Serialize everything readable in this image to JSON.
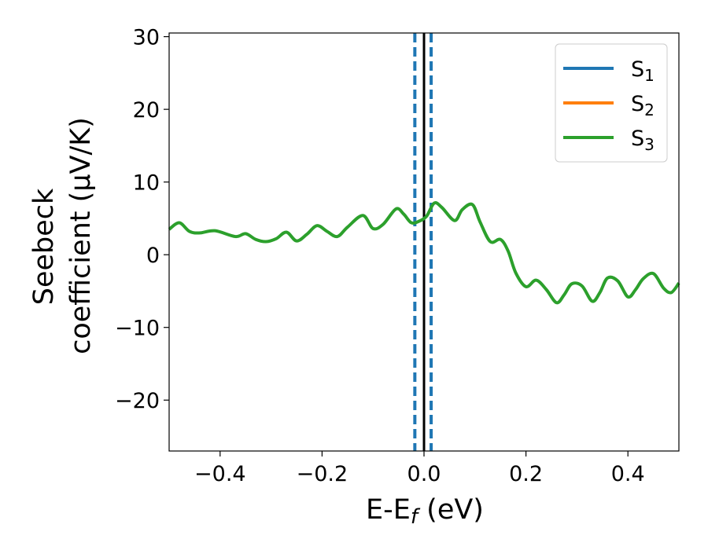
{
  "chart_data": {
    "type": "line",
    "title": "",
    "xlabel": "E-E",
    "xlabel_sub": "f",
    "xlabel_unit": " (eV)",
    "ylabel_line1": "Seebeck",
    "ylabel_line2": "coefficient  (μV/K)",
    "xlim": [
      -0.5,
      0.5
    ],
    "ylim": [
      -27,
      30.5
    ],
    "xticks": [
      -0.4,
      -0.2,
      0.0,
      0.2,
      0.4
    ],
    "xtick_labels": [
      "−0.4",
      "−0.2",
      "0.0",
      "0.2",
      "0.4"
    ],
    "yticks": [
      -20,
      -10,
      0,
      10,
      20,
      30
    ],
    "ytick_labels": [
      "−20",
      "−10",
      "0",
      "10",
      "20",
      "30"
    ],
    "grid": false,
    "legend_position": "top-right",
    "vertical_lines": [
      {
        "x": -0.018,
        "color": "#1f77b4",
        "style": "dashed"
      },
      {
        "x": 0.0,
        "color": "#000000",
        "style": "solid"
      },
      {
        "x": 0.014,
        "color": "#1f77b4",
        "style": "dashed"
      }
    ],
    "series": [
      {
        "name": "S",
        "sub": "1",
        "color": "#1f77b4",
        "x": [],
        "y": []
      },
      {
        "name": "S",
        "sub": "2",
        "color": "#ff7f0e",
        "x": [],
        "y": []
      },
      {
        "name": "S",
        "sub": "3",
        "color": "#2ca02c",
        "x": [
          -0.5,
          -0.48,
          -0.46,
          -0.44,
          -0.41,
          -0.37,
          -0.35,
          -0.33,
          -0.31,
          -0.29,
          -0.27,
          -0.25,
          -0.23,
          -0.21,
          -0.19,
          -0.17,
          -0.15,
          -0.12,
          -0.1,
          -0.08,
          -0.055,
          -0.04,
          -0.025,
          -0.01,
          0.005,
          0.02,
          0.035,
          0.06,
          0.075,
          0.095,
          0.11,
          0.13,
          0.15,
          0.165,
          0.18,
          0.2,
          0.22,
          0.24,
          0.26,
          0.275,
          0.29,
          0.31,
          0.33,
          0.345,
          0.36,
          0.38,
          0.4,
          0.415,
          0.43,
          0.45,
          0.47,
          0.485,
          0.5
        ],
        "y": [
          3.5,
          4.4,
          3.2,
          3.0,
          3.3,
          2.5,
          2.9,
          2.1,
          1.8,
          2.2,
          3.1,
          1.9,
          2.8,
          4.0,
          3.2,
          2.5,
          3.8,
          5.4,
          3.6,
          4.2,
          6.3,
          5.6,
          4.4,
          4.6,
          5.3,
          7.1,
          6.5,
          4.7,
          6.2,
          6.9,
          4.5,
          1.8,
          2.1,
          0.5,
          -2.5,
          -4.4,
          -3.5,
          -4.8,
          -6.6,
          -5.5,
          -4.0,
          -4.3,
          -6.4,
          -5.2,
          -3.2,
          -3.6,
          -5.8,
          -4.8,
          -3.3,
          -2.6,
          -4.6,
          -5.2,
          -3.9
        ]
      }
    ]
  }
}
